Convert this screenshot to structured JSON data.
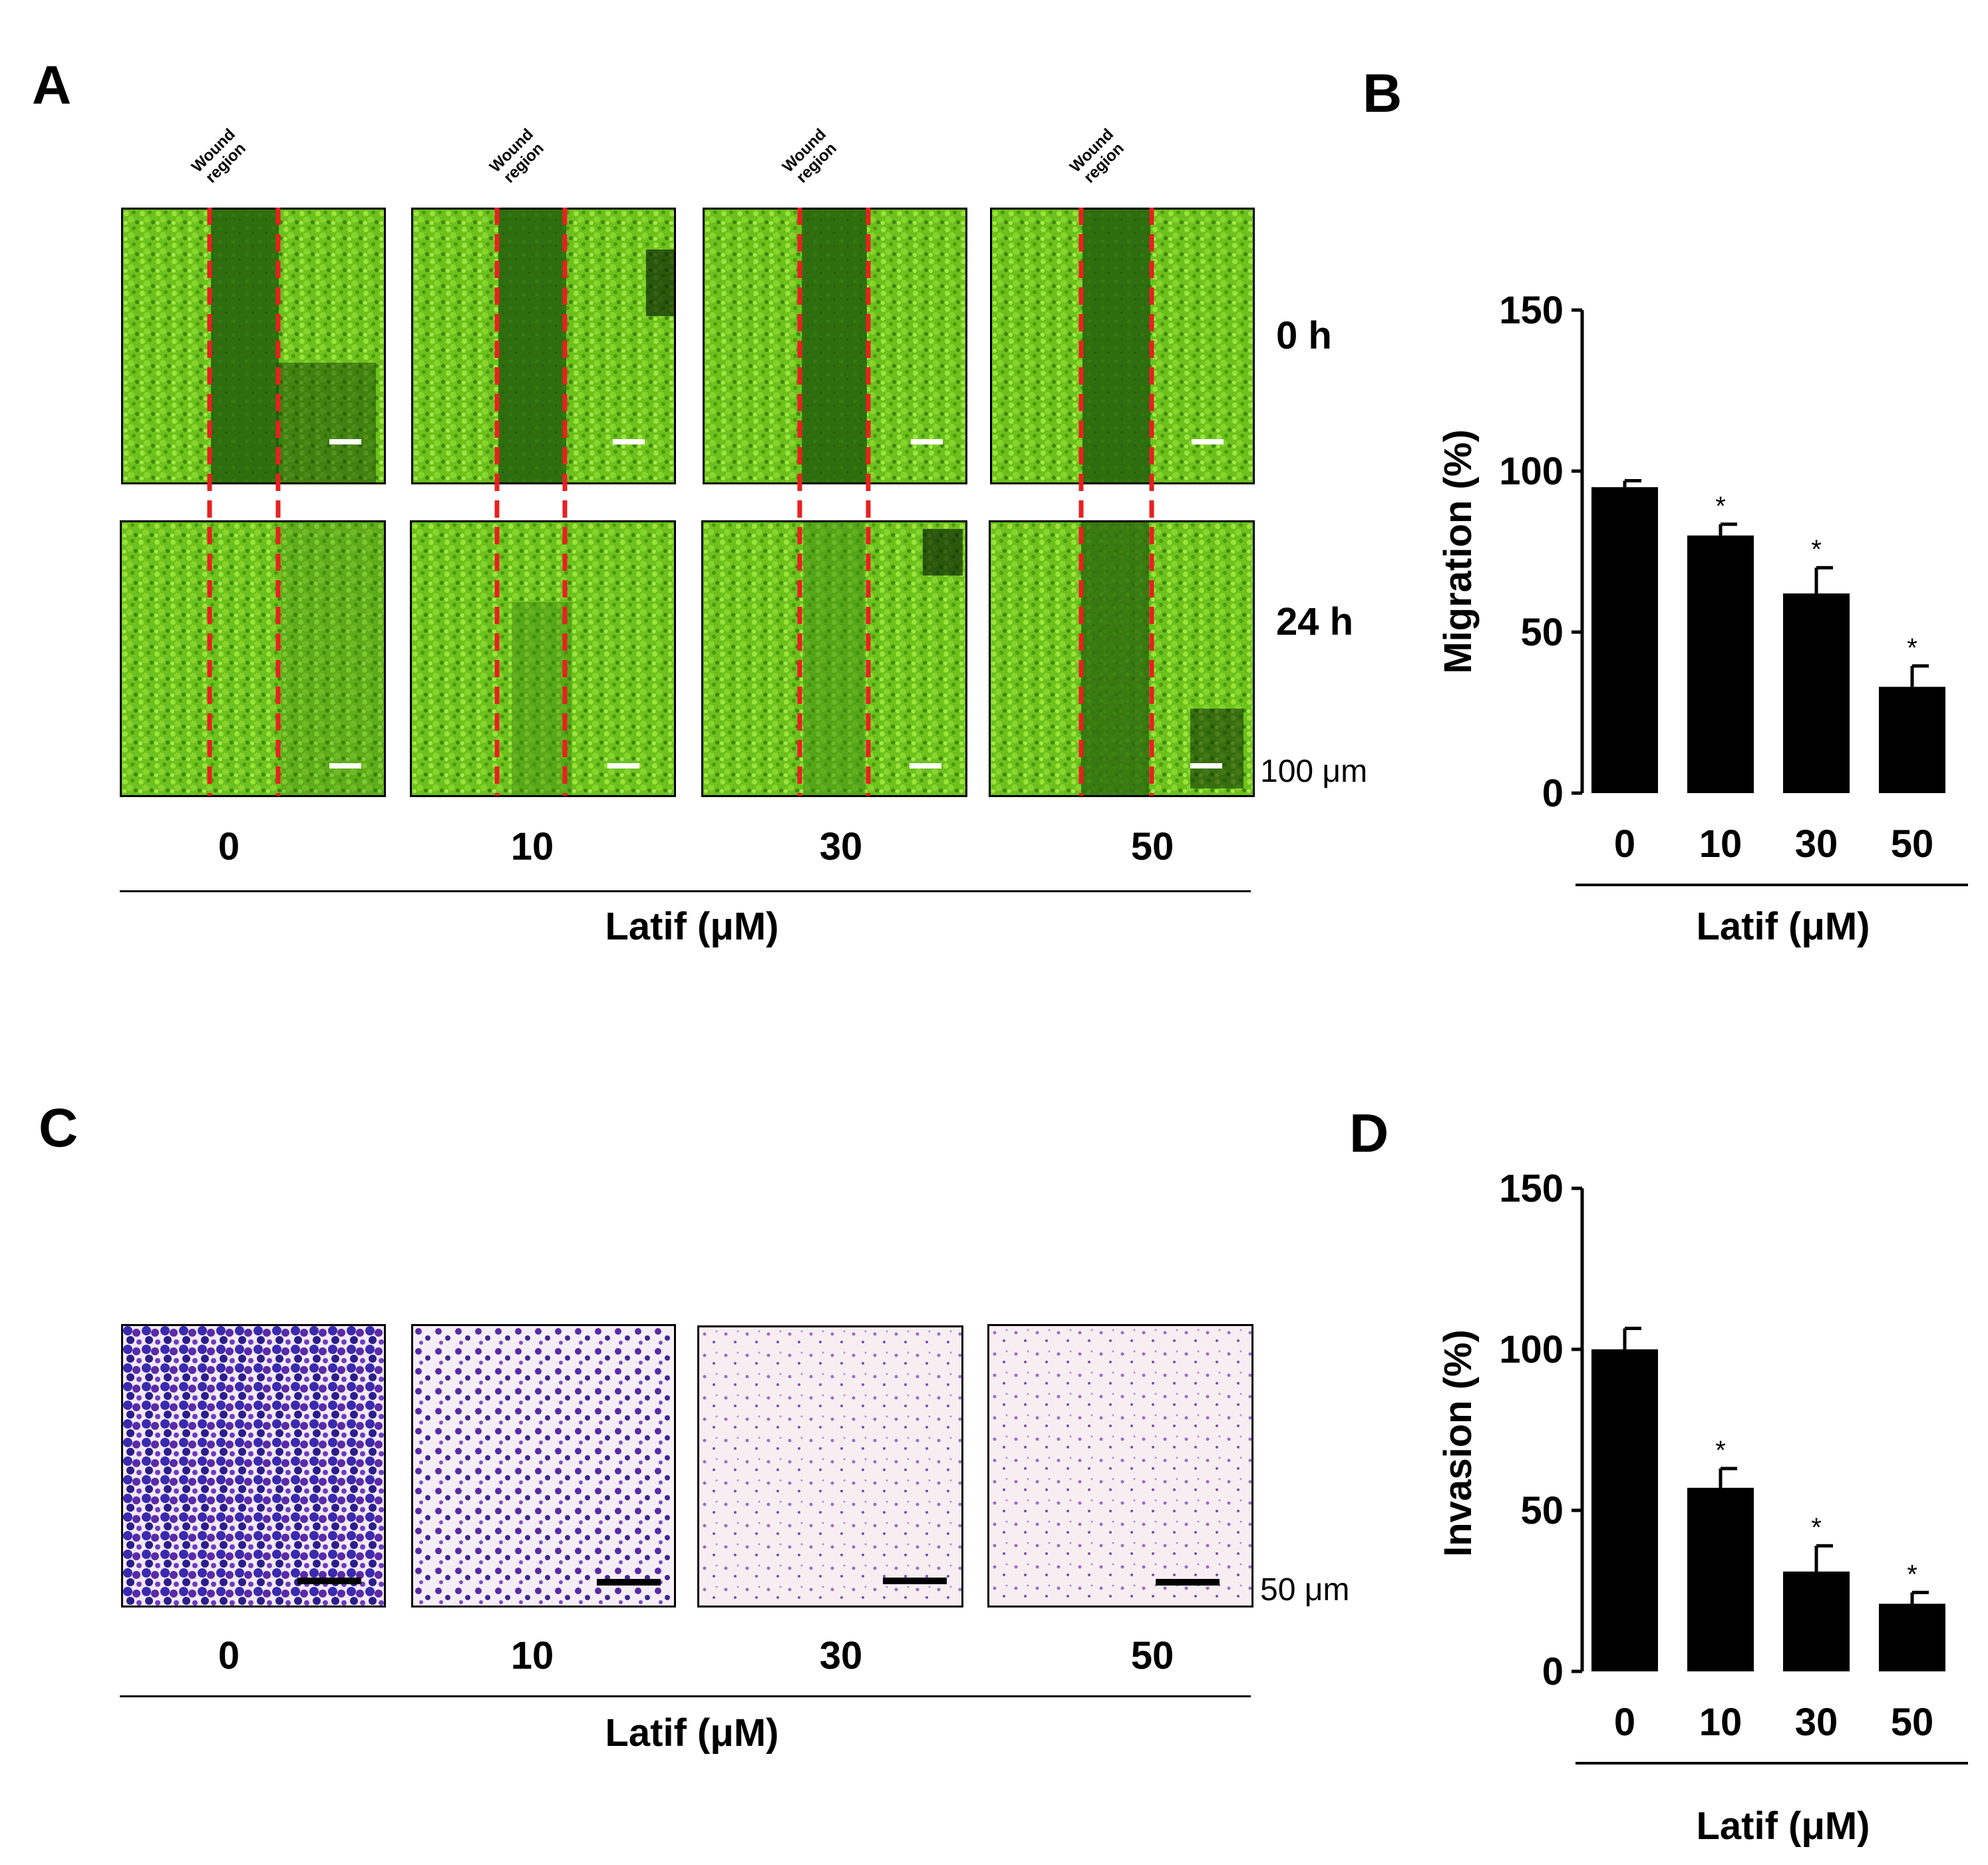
{
  "panels": {
    "a": "A",
    "b": "B",
    "c": "C",
    "d": "D"
  },
  "wound_label": {
    "line1": "Wound",
    "line2": "region"
  },
  "time_labels": [
    "0 h",
    "24 h"
  ],
  "concentrations": [
    "0",
    "10",
    "30",
    "50"
  ],
  "scale_bars": {
    "a": "100 μm",
    "c": "50 μm"
  },
  "xaxis_title": "Latif (μM)",
  "colors": {
    "wound_line": "#e82020",
    "cell_green": "#7ed321",
    "wound_dark_green": "#2f6e0e",
    "bar": "#000000",
    "stain_purple": "#5a2aa8",
    "membrane_bg": "#f6eef2"
  },
  "chart_data": [
    {
      "panel": "B",
      "type": "bar",
      "categories": [
        "0",
        "10",
        "30",
        "50"
      ],
      "values": [
        95,
        80,
        62,
        33
      ],
      "errors": [
        2,
        3.5,
        8,
        6.5
      ],
      "significance": [
        "",
        "*",
        "*",
        "*"
      ],
      "ylabel": "Migration (%)",
      "xlabel": "Latif (μM)",
      "yticks": [
        "0",
        "50",
        "100",
        "150"
      ],
      "ylim": [
        0,
        150
      ]
    },
    {
      "panel": "D",
      "type": "bar",
      "categories": [
        "0",
        "10",
        "30",
        "50"
      ],
      "values": [
        100,
        57,
        31,
        21
      ],
      "errors": [
        6.5,
        6,
        8,
        3.5
      ],
      "significance": [
        "",
        "*",
        "*",
        "*"
      ],
      "ylabel": "Invasion (%)",
      "xlabel": "Latif (μM)",
      "yticks": [
        "0",
        "50",
        "100",
        "150"
      ],
      "ylim": [
        0,
        150
      ]
    }
  ]
}
